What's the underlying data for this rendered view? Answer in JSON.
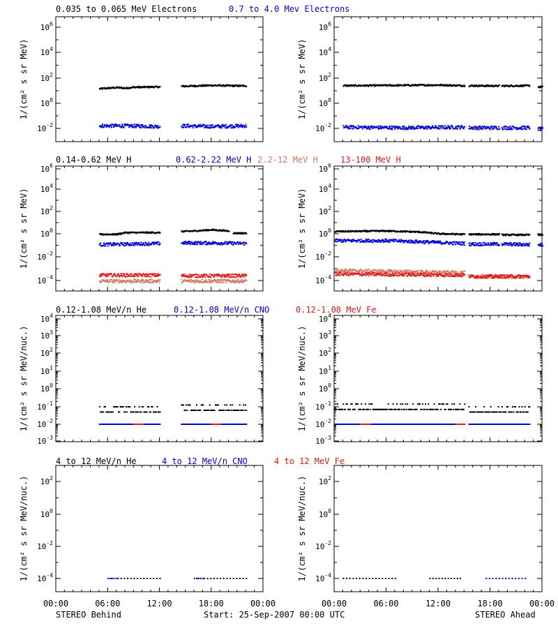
{
  "colors": {
    "black": "#000000",
    "blue": "#0000e0",
    "salmon": "#d07a5e",
    "red": "#e41a1c"
  },
  "rows": [
    {
      "legend": [
        {
          "text": "0.035 to 0.065 MeV Electrons",
          "color": "#000000"
        },
        {
          "text": "0.7 to 4.0 Mev Electrons",
          "color": "#0000e0"
        }
      ],
      "ylabel": "1/(cm² s sr MeV)",
      "ticks": [
        {
          "base": "10",
          "exp": "6",
          "val": 6
        },
        {
          "base": "10",
          "exp": "4",
          "val": 4
        },
        {
          "base": "10",
          "exp": "2",
          "val": 2
        },
        {
          "base": "10",
          "exp": "0",
          "val": 0
        },
        {
          "base": "10",
          "exp": "-2",
          "val": -2
        }
      ]
    },
    {
      "legend": [
        {
          "text": "0.14-0.62 MeV H",
          "color": "#000000"
        },
        {
          "text": "0.62-2.22 MeV H",
          "color": "#0000e0"
        },
        {
          "text": "2.2-12 MeV H",
          "color": "#d07a5e"
        },
        {
          "text": "13-100 MeV H",
          "color": "#e41a1c"
        }
      ],
      "ylabel": "1/(cm² s sr MeV)",
      "ticks": [
        {
          "base": "10",
          "exp": "6",
          "val": 6
        },
        {
          "base": "10",
          "exp": "4",
          "val": 4
        },
        {
          "base": "10",
          "exp": "2",
          "val": 2
        },
        {
          "base": "10",
          "exp": "0",
          "val": 0
        },
        {
          "base": "10",
          "exp": "-2",
          "val": -2
        },
        {
          "base": "10",
          "exp": "-4",
          "val": -4
        }
      ]
    },
    {
      "legend": [
        {
          "text": "0.12-1.08 MeV/n He",
          "color": "#000000"
        },
        {
          "text": "0.12-1.08 MeV/n CNO",
          "color": "#0000e0"
        },
        {
          "text": "0.12-1.08 MeV Fe",
          "color": "#e41a1c"
        }
      ],
      "ylabel": "1/(cm² s sr MeV/nuc.)",
      "ticks": [
        {
          "base": "10",
          "exp": "4",
          "val": 4
        },
        {
          "base": "10",
          "exp": "3",
          "val": 3
        },
        {
          "base": "10",
          "exp": "2",
          "val": 2
        },
        {
          "base": "10",
          "exp": "1",
          "val": 1
        },
        {
          "base": "10",
          "exp": "0",
          "val": 0
        },
        {
          "base": "10",
          "exp": "-1",
          "val": -1
        },
        {
          "base": "10",
          "exp": "-2",
          "val": -2
        },
        {
          "base": "10",
          "exp": "-3",
          "val": -3
        }
      ]
    },
    {
      "legend": [
        {
          "text": "4 to 12 MeV/n He",
          "color": "#000000"
        },
        {
          "text": "4 to 12 MeV/n CNO",
          "color": "#0000e0"
        },
        {
          "text": "4 to 12 MeV Fe",
          "color": "#e41a1c"
        }
      ],
      "ylabel": "1/(cm² s sr MeV/nuc.)",
      "ticks": [
        {
          "base": "10",
          "exp": "2",
          "val": 2
        },
        {
          "base": "10",
          "exp": "0",
          "val": 0
        },
        {
          "base": "10",
          "exp": "-2",
          "val": -2
        },
        {
          "base": "10",
          "exp": "-4",
          "val": -4
        }
      ]
    }
  ],
  "xticks": [
    "00:00",
    "06:00",
    "12:00",
    "18:00",
    "00:00"
  ],
  "footer": {
    "left": "STEREO Behind",
    "center": "Start: 25-Sep-2007 00:00 UTC",
    "right": "STEREO Ahead"
  },
  "chart_data": [
    {
      "type": "scatter",
      "panel": "row1-left",
      "yscale": "log",
      "ylim_log10": [
        -3,
        7
      ],
      "xlim_hours": [
        0,
        24
      ],
      "series": [
        {
          "name": "0.035 to 0.065 MeV Electrons",
          "color": "#000000",
          "segments": [
            {
              "x": [
                5,
                6,
                7,
                8,
                9,
                10,
                11,
                12
              ],
              "y_log10": [
                1.15,
                1.2,
                1.25,
                1.2,
                1.28,
                1.28,
                1.3,
                1.3
              ]
            },
            {
              "x": [
                14.5,
                16,
                18,
                20,
                22
              ],
              "y_log10": [
                1.35,
                1.38,
                1.42,
                1.4,
                1.38
              ]
            }
          ]
        },
        {
          "name": "0.7 to 4.0 Mev Electrons",
          "color": "#0000e0",
          "segments": [
            {
              "x": [
                5,
                8,
                12
              ],
              "y_log10": [
                -1.8,
                -1.8,
                -1.85
              ]
            },
            {
              "x": [
                14.5,
                18,
                22
              ],
              "y_log10": [
                -1.8,
                -1.85,
                -1.8
              ]
            }
          ]
        }
      ]
    },
    {
      "type": "scatter",
      "panel": "row1-right",
      "yscale": "log",
      "ylim_log10": [
        -3,
        7
      ],
      "xlim_hours": [
        0,
        24
      ],
      "series": [
        {
          "name": "0.035 to 0.065 MeV Electrons",
          "color": "#000000",
          "segments": [
            {
              "x": [
                1,
                6,
                12,
                15
              ],
              "y_log10": [
                1.4,
                1.42,
                1.45,
                1.4
              ]
            },
            {
              "x": [
                15.5,
                19
              ],
              "y_log10": [
                1.4,
                1.38
              ]
            },
            {
              "x": [
                19.3,
                22.5
              ],
              "y_log10": [
                1.38,
                1.4
              ]
            },
            {
              "x": [
                23.5,
                24
              ],
              "y_log10": [
                1.3,
                1.3
              ]
            }
          ]
        },
        {
          "name": "0.7 to 4.0 Mev Electrons",
          "color": "#0000e0",
          "segments": [
            {
              "x": [
                1,
                8,
                15
              ],
              "y_log10": [
                -1.9,
                -1.95,
                -1.9
              ]
            },
            {
              "x": [
                15.5,
                19
              ],
              "y_log10": [
                -1.95,
                -1.95
              ]
            },
            {
              "x": [
                19.3,
                22.5
              ],
              "y_log10": [
                -1.95,
                -1.95
              ]
            },
            {
              "x": [
                23.5,
                24
              ],
              "y_log10": [
                -2.05,
                -2.05
              ]
            }
          ]
        }
      ]
    },
    {
      "type": "scatter",
      "panel": "row2-left",
      "yscale": "log",
      "ylim_log10": [
        -5,
        6
      ],
      "xlim_hours": [
        0,
        24
      ],
      "series": [
        {
          "name": "0.14-0.62 MeV H",
          "color": "#000000",
          "segments": [
            {
              "x": [
                5,
                7,
                8,
                10,
                12
              ],
              "y_log10": [
                -0.05,
                -0.05,
                0.1,
                0.1,
                0.1
              ]
            },
            {
              "x": [
                14.5,
                16,
                18,
                19,
                20
              ],
              "y_log10": [
                0.2,
                0.25,
                0.35,
                0.3,
                0.25
              ]
            },
            {
              "x": [
                20.5,
                22
              ],
              "y_log10": [
                0.05,
                0.05
              ]
            }
          ]
        },
        {
          "name": "0.62-2.22 MeV H",
          "color": "#0000e0",
          "segments": [
            {
              "x": [
                5,
                8,
                12
              ],
              "y_log10": [
                -0.95,
                -0.9,
                -0.85
              ]
            },
            {
              "x": [
                14.5,
                18,
                22
              ],
              "y_log10": [
                -0.8,
                -0.8,
                -0.85
              ]
            }
          ]
        },
        {
          "name": "2.2-12 MeV H",
          "color": "#d07a5e",
          "segments": [
            {
              "x": [
                5,
                12
              ],
              "y_log10": [
                -4.05,
                -4.05
              ]
            },
            {
              "x": [
                14.5,
                22
              ],
              "y_log10": [
                -4.05,
                -4.05
              ]
            }
          ]
        },
        {
          "name": "13-100 MeV H",
          "color": "#e41a1c",
          "segments": [
            {
              "x": [
                5,
                12
              ],
              "y_log10": [
                -3.55,
                -3.55
              ]
            },
            {
              "x": [
                14.5,
                22
              ],
              "y_log10": [
                -3.6,
                -3.6
              ]
            }
          ]
        }
      ]
    },
    {
      "type": "scatter",
      "panel": "row2-right",
      "yscale": "log",
      "ylim_log10": [
        -5,
        6
      ],
      "xlim_hours": [
        0,
        24
      ],
      "series": [
        {
          "name": "0.14-0.62 MeV H",
          "color": "#000000",
          "segments": [
            {
              "x": [
                0,
                6,
                10,
                12,
                15
              ],
              "y_log10": [
                0.2,
                0.25,
                0.15,
                0.0,
                -0.05
              ]
            },
            {
              "x": [
                15.5,
                19
              ],
              "y_log10": [
                -0.05,
                -0.05
              ]
            },
            {
              "x": [
                19.3,
                22.5
              ],
              "y_log10": [
                -0.1,
                -0.1
              ]
            },
            {
              "x": [
                23.5,
                24
              ],
              "y_log10": [
                -0.1,
                -0.1
              ]
            }
          ]
        },
        {
          "name": "0.62-2.22 MeV H",
          "color": "#0000e0",
          "segments": [
            {
              "x": [
                0,
                6,
                10,
                15
              ],
              "y_log10": [
                -0.6,
                -0.6,
                -0.7,
                -0.85
              ]
            },
            {
              "x": [
                15.5,
                19
              ],
              "y_log10": [
                -0.9,
                -0.9
              ]
            },
            {
              "x": [
                19.3,
                22.5
              ],
              "y_log10": [
                -0.9,
                -0.95
              ]
            },
            {
              "x": [
                23.5,
                24
              ],
              "y_log10": [
                -0.95,
                -0.95
              ]
            }
          ]
        },
        {
          "name": "2.2-12 MeV H",
          "color": "#d07a5e",
          "segments": [
            {
              "x": [
                0,
                15
              ],
              "y_log10": [
                -3.15,
                -3.35
              ]
            },
            {
              "x": [
                15.5,
                22.5
              ],
              "y_log10": [
                -3.7,
                -3.7
              ]
            }
          ]
        },
        {
          "name": "13-100 MeV H",
          "color": "#e41a1c",
          "segments": [
            {
              "x": [
                0,
                15
              ],
              "y_log10": [
                -3.45,
                -3.55
              ]
            },
            {
              "x": [
                15.5,
                22.5
              ],
              "y_log10": [
                -3.65,
                -3.65
              ]
            }
          ]
        }
      ]
    },
    {
      "type": "scatter",
      "panel": "row3-left",
      "yscale": "log",
      "ylim_log10": [
        -3.5,
        4
      ],
      "xlim_hours": [
        0,
        24
      ],
      "series": [
        {
          "name": "0.12-1.08 MeV/n He",
          "color": "#000000",
          "segments": [
            {
              "x": [
                5,
                12
              ],
              "y_log10": [
                -1.3,
                -1.3
              ]
            },
            {
              "x": [
                14.5,
                22
              ],
              "y_log10": [
                -1.2,
                -1.2
              ]
            }
          ]
        },
        {
          "name": "0.12-1.08 MeV/n CNO",
          "color": "#0000e0",
          "segments": [
            {
              "x": [
                5,
                12
              ],
              "y_log10": [
                -2,
                -2
              ]
            },
            {
              "x": [
                14.5,
                22
              ],
              "y_log10": [
                -2,
                -2
              ]
            }
          ]
        },
        {
          "name": "0.12-1.08 MeV Fe",
          "color": "#e41a1c",
          "segments": [
            {
              "x": [
                9,
                10
              ],
              "y_log10": [
                -2,
                -2
              ]
            },
            {
              "x": [
                18,
                19
              ],
              "y_log10": [
                -2,
                -2
              ]
            }
          ]
        }
      ]
    },
    {
      "type": "scatter",
      "panel": "row3-right",
      "yscale": "log",
      "ylim_log10": [
        -3.5,
        4
      ],
      "xlim_hours": [
        0,
        24
      ],
      "series": [
        {
          "name": "0.12-1.08 MeV/n He",
          "color": "#000000",
          "segments": [
            {
              "x": [
                0,
                15
              ],
              "y_log10": [
                -1.15,
                -1.15
              ]
            },
            {
              "x": [
                15.5,
                22.5
              ],
              "y_log10": [
                -1.3,
                -1.3
              ]
            }
          ]
        },
        {
          "name": "0.12-1.08 MeV/n CNO",
          "color": "#0000e0",
          "segments": [
            {
              "x": [
                0,
                15
              ],
              "y_log10": [
                -2,
                -2
              ]
            },
            {
              "x": [
                15.5,
                22.5
              ],
              "y_log10": [
                -2,
                -2
              ]
            }
          ]
        },
        {
          "name": "0.12-1.08 MeV Fe",
          "color": "#e41a1c",
          "segments": [
            {
              "x": [
                3,
                4
              ],
              "y_log10": [
                -2,
                -2
              ]
            },
            {
              "x": [
                14,
                15
              ],
              "y_log10": [
                -2,
                -2
              ]
            }
          ]
        }
      ]
    },
    {
      "type": "scatter",
      "panel": "row4-left",
      "yscale": "log",
      "ylim_log10": [
        -5,
        4
      ],
      "xlim_hours": [
        0,
        24
      ],
      "series": [
        {
          "name": "4 to 12 MeV/n He",
          "color": "#000000",
          "segments": [
            {
              "x": [
                6,
                12
              ],
              "y_log10": [
                -4,
                -4
              ]
            },
            {
              "x": [
                16,
                22
              ],
              "y_log10": [
                -4,
                -4
              ]
            }
          ]
        },
        {
          "name": "4 to 12 MeV/n CNO",
          "color": "#0000e0",
          "segments": [
            {
              "x": [
                6,
                7
              ],
              "y_log10": [
                -4,
                -4
              ]
            },
            {
              "x": [
                16,
                17
              ],
              "y_log10": [
                -4,
                -4
              ]
            }
          ]
        }
      ]
    },
    {
      "type": "scatter",
      "panel": "row4-right",
      "yscale": "log",
      "ylim_log10": [
        -5,
        4
      ],
      "xlim_hours": [
        0,
        24
      ],
      "series": [
        {
          "name": "4 to 12 MeV/n He",
          "color": "#000000",
          "segments": [
            {
              "x": [
                1,
                7
              ],
              "y_log10": [
                -4,
                -4
              ]
            },
            {
              "x": [
                11,
                14.5
              ],
              "y_log10": [
                -4,
                -4
              ]
            }
          ]
        },
        {
          "name": "4 to 12 MeV/n CNO",
          "color": "#0000e0",
          "segments": [
            {
              "x": [
                17.5,
                22
              ],
              "y_log10": [
                -4,
                -4
              ]
            }
          ]
        }
      ]
    }
  ]
}
